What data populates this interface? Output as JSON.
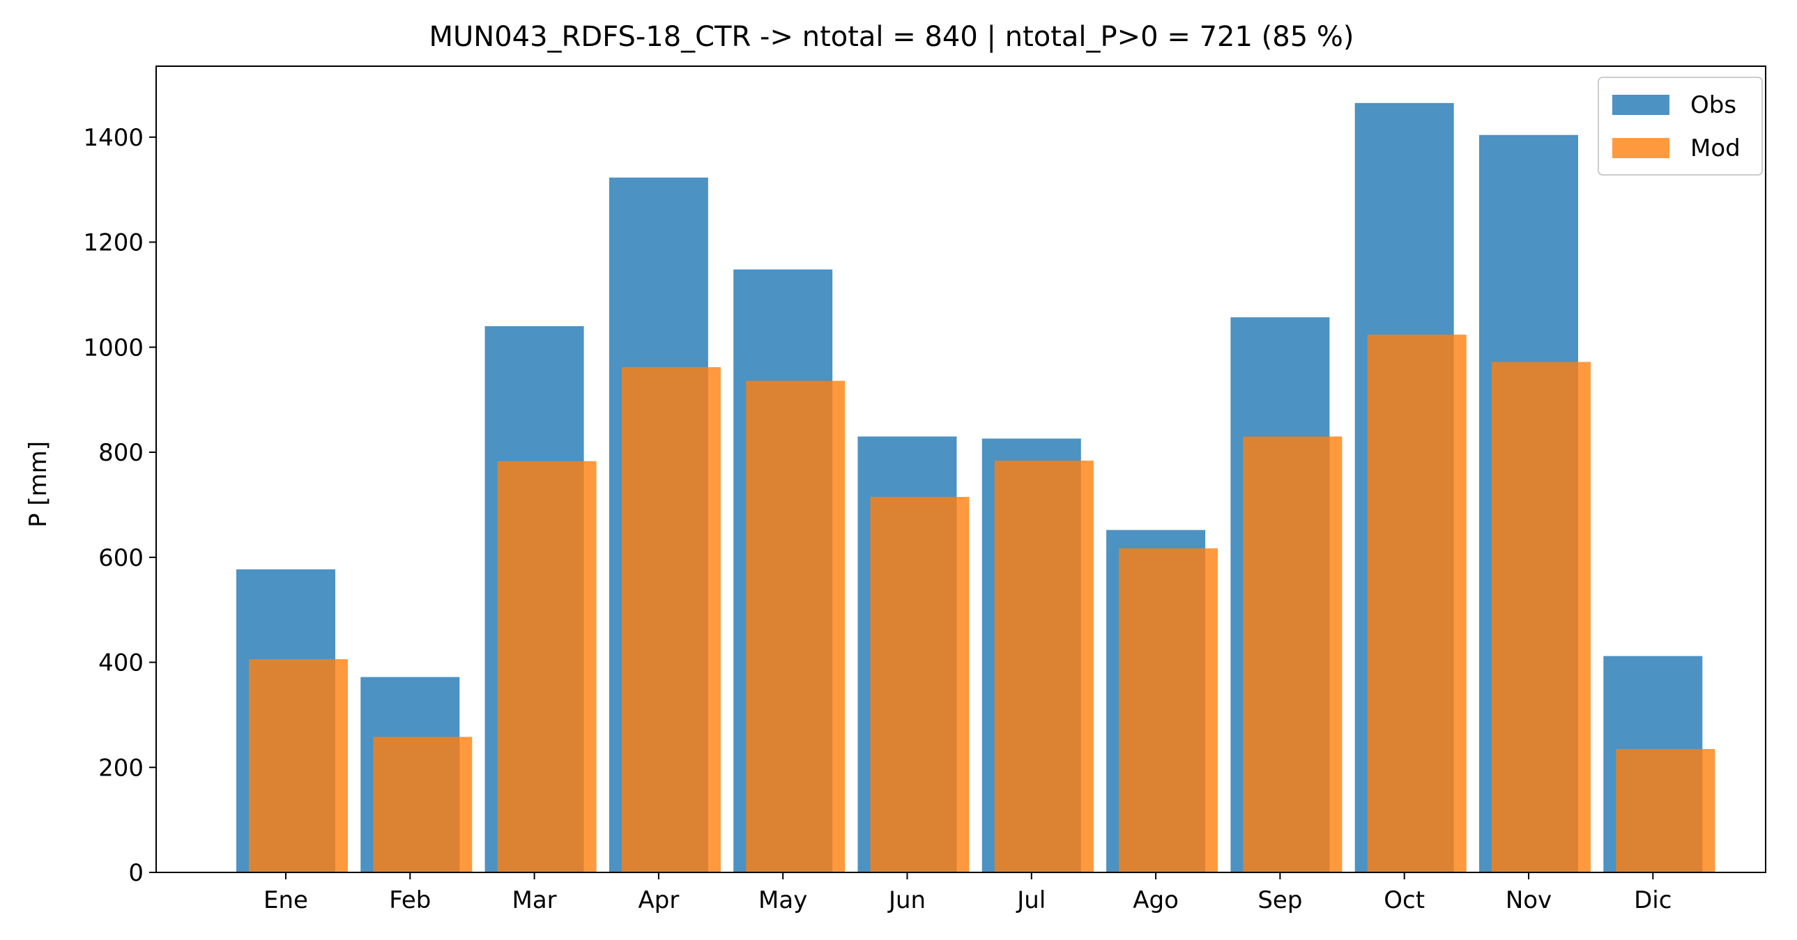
{
  "chart_data": {
    "type": "bar",
    "title": "MUN043_RDFS-18_CTR -> ntotal = 840 | ntotal_P>0 = 721 (85 %)",
    "xlabel": "",
    "ylabel": "P [mm]",
    "categories": [
      "Ene",
      "Feb",
      "Mar",
      "Apr",
      "May",
      "Jun",
      "Jul",
      "Ago",
      "Sep",
      "Oct",
      "Nov",
      "Dic"
    ],
    "series": [
      {
        "name": "Obs",
        "color": "#1f77b4",
        "opacity": 0.8,
        "values": [
          577,
          372,
          1040,
          1323,
          1148,
          830,
          826,
          652,
          1057,
          1465,
          1404,
          412
        ]
      },
      {
        "name": "Mod",
        "color": "#ff7f0e",
        "opacity": 0.8,
        "values": [
          406,
          258,
          783,
          962,
          936,
          715,
          784,
          617,
          830,
          1024,
          972,
          235
        ]
      }
    ],
    "yticks": [
      0,
      200,
      400,
      600,
      800,
      1000,
      1200,
      1400
    ],
    "ylim": [
      0,
      1535
    ],
    "grid": false,
    "legend": "top-right"
  }
}
